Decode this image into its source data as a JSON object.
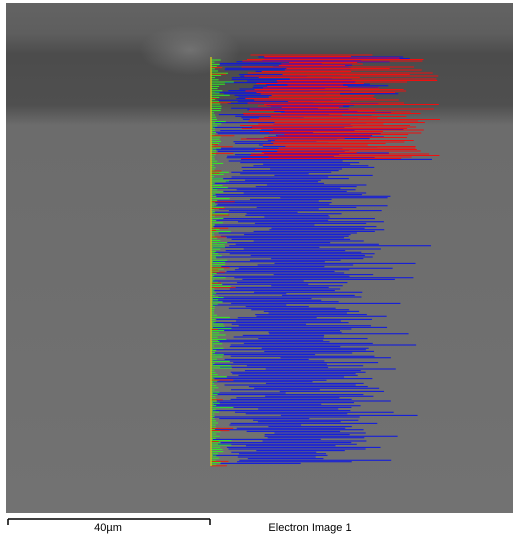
{
  "scale_bar": {
    "label": "40µm"
  },
  "caption": "Electron Image 1"
}
